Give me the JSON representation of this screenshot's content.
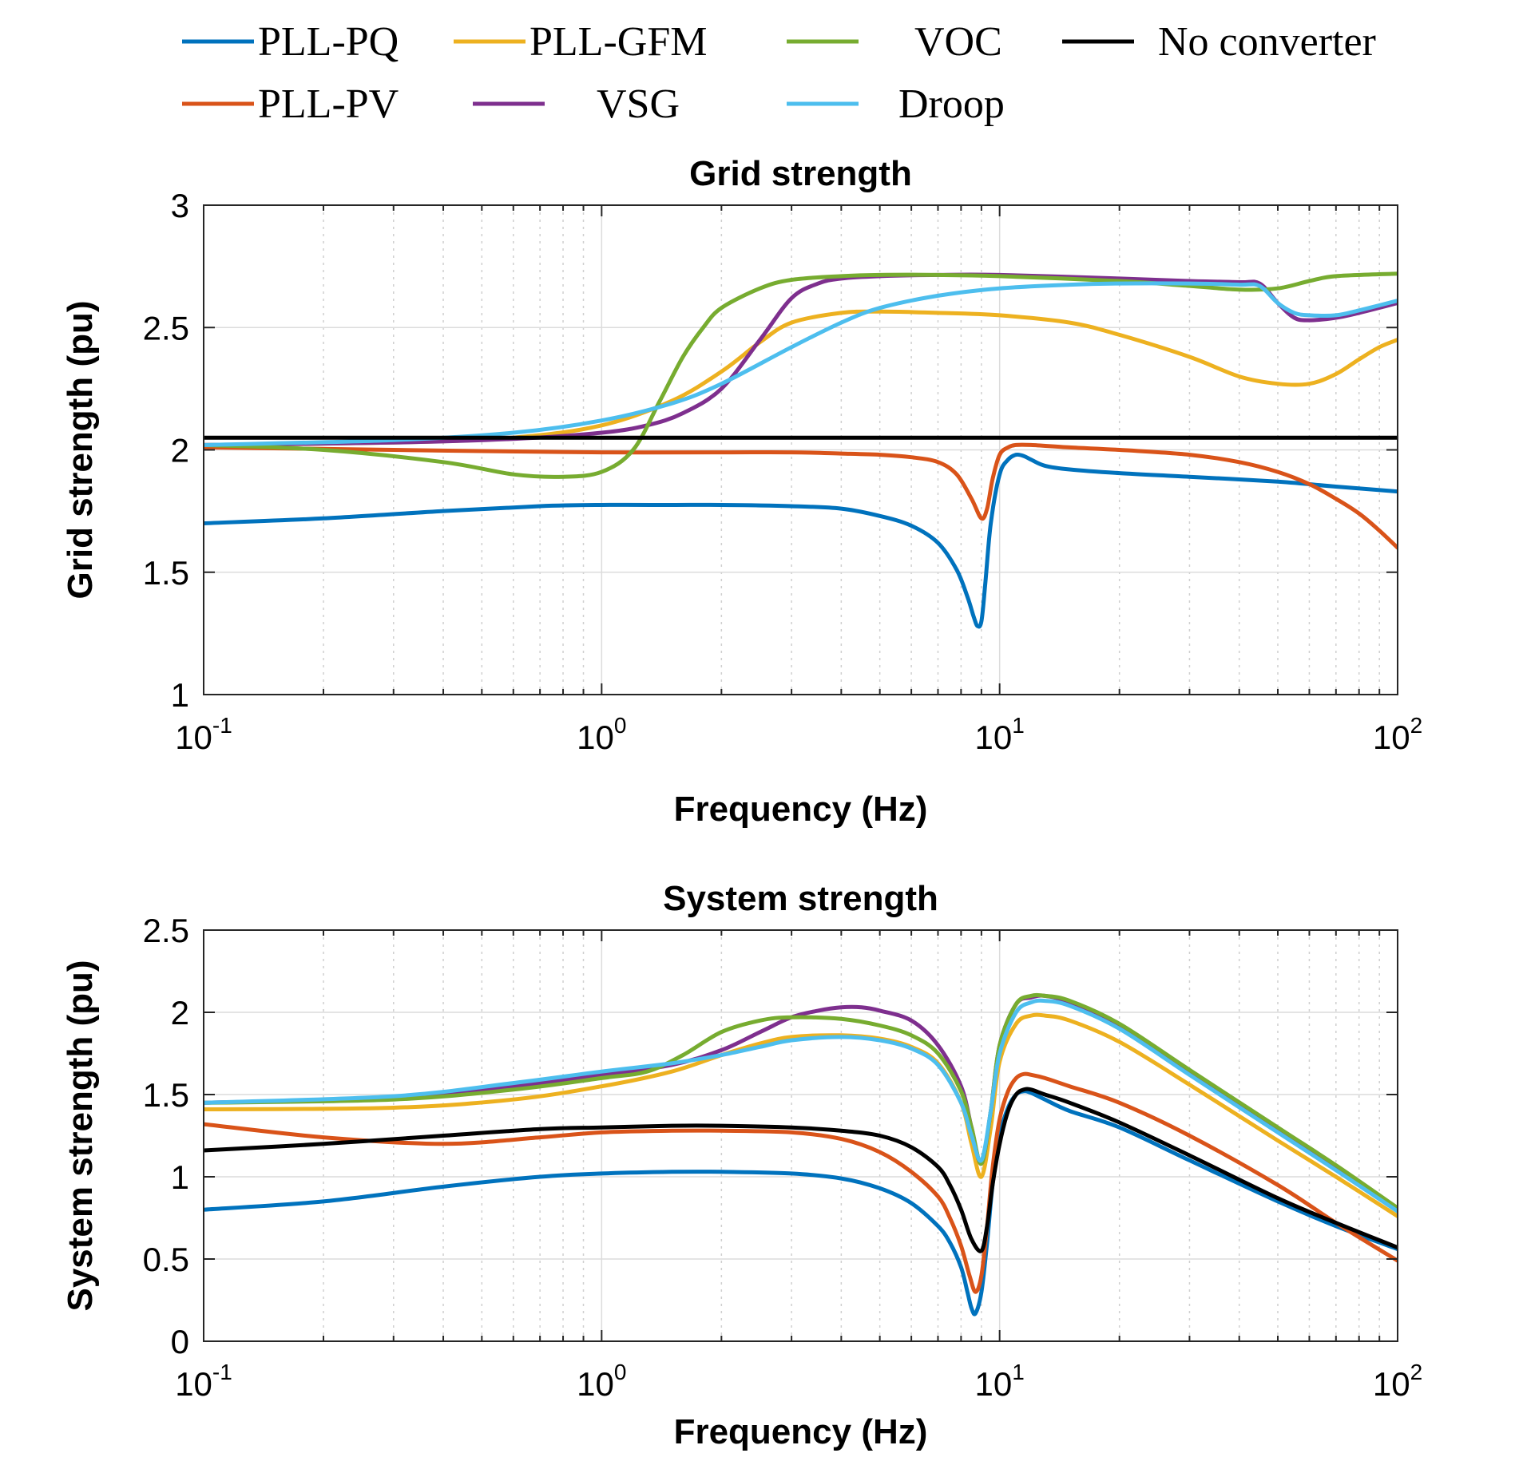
{
  "chart_data": [
    {
      "type": "line",
      "title": "Grid strength",
      "xlabel": "Frequency (Hz)",
      "ylabel": "Grid strength (pu)",
      "xscale": "log",
      "xlim": [
        0.1,
        100
      ],
      "ylim": [
        1,
        3
      ],
      "xticks": [
        {
          "base": "10",
          "exp": "-1"
        },
        {
          "base": "10",
          "exp": "0"
        },
        {
          "base": "10",
          "exp": "1"
        },
        {
          "base": "10",
          "exp": "2"
        }
      ],
      "yticks": [
        "1",
        "1.5",
        "2",
        "2.5",
        "3"
      ],
      "grid": true,
      "series": [
        {
          "name": "PLL-PQ",
          "color": "#0072BD",
          "x": [
            0.1,
            0.2,
            0.4,
            0.7,
            1,
            1.5,
            2,
            3,
            4,
            5,
            6,
            7,
            7.8,
            8.3,
            8.6,
            8.8,
            9,
            9.2,
            9.5,
            10,
            10.5,
            11,
            11.5,
            12,
            13,
            15,
            20,
            30,
            50,
            70,
            100
          ],
          "y": [
            1.7,
            1.72,
            1.75,
            1.77,
            1.775,
            1.775,
            1.775,
            1.77,
            1.76,
            1.73,
            1.69,
            1.62,
            1.51,
            1.4,
            1.32,
            1.28,
            1.3,
            1.45,
            1.7,
            1.9,
            1.96,
            1.98,
            1.975,
            1.96,
            1.935,
            1.92,
            1.905,
            1.89,
            1.87,
            1.85,
            1.83
          ]
        },
        {
          "name": "PLL-PV",
          "color": "#D95319",
          "x": [
            0.1,
            0.3,
            0.5,
            1,
            2,
            3,
            4,
            5,
            6,
            7,
            7.8,
            8.5,
            9,
            9.3,
            9.6,
            10,
            10.5,
            11,
            12,
            15,
            20,
            30,
            40,
            50,
            60,
            70,
            80,
            90,
            100
          ],
          "y": [
            2.01,
            2.0,
            1.995,
            1.99,
            1.99,
            1.99,
            1.985,
            1.98,
            1.97,
            1.95,
            1.9,
            1.8,
            1.72,
            1.76,
            1.88,
            1.98,
            2.01,
            2.02,
            2.02,
            2.01,
            2.0,
            1.98,
            1.95,
            1.91,
            1.86,
            1.8,
            1.74,
            1.67,
            1.6
          ]
        },
        {
          "name": "PLL-GFM",
          "color": "#EDB120",
          "x": [
            0.1,
            0.3,
            0.6,
            1,
            1.5,
            2,
            2.5,
            3,
            4,
            5,
            7,
            10,
            15,
            20,
            30,
            40,
            50,
            60,
            70,
            80,
            90,
            100
          ],
          "y": [
            2.02,
            2.03,
            2.05,
            2.1,
            2.2,
            2.32,
            2.44,
            2.52,
            2.56,
            2.565,
            2.56,
            2.55,
            2.52,
            2.47,
            2.38,
            2.3,
            2.27,
            2.27,
            2.31,
            2.37,
            2.42,
            2.45
          ]
        },
        {
          "name": "VSG",
          "color": "#7E2F8E",
          "x": [
            0.1,
            0.3,
            0.6,
            1,
            1.3,
            1.6,
            2,
            2.5,
            3,
            3.5,
            4,
            5,
            7,
            10,
            20,
            30,
            40,
            45,
            50,
            55,
            60,
            70,
            80,
            100
          ],
          "y": [
            2.02,
            2.03,
            2.045,
            2.07,
            2.1,
            2.15,
            2.25,
            2.45,
            2.62,
            2.68,
            2.7,
            2.71,
            2.715,
            2.715,
            2.7,
            2.69,
            2.685,
            2.68,
            2.6,
            2.54,
            2.53,
            2.54,
            2.56,
            2.6
          ]
        },
        {
          "name": "VOC",
          "color": "#77AC30",
          "x": [
            0.1,
            0.2,
            0.4,
            0.6,
            0.8,
            1,
            1.2,
            1.4,
            1.6,
            1.8,
            2,
            2.5,
            3,
            4,
            5,
            7,
            10,
            20,
            30,
            40,
            50,
            60,
            70,
            100
          ],
          "y": [
            2.02,
            2.0,
            1.95,
            1.9,
            1.89,
            1.91,
            2.0,
            2.2,
            2.38,
            2.5,
            2.58,
            2.66,
            2.695,
            2.71,
            2.715,
            2.715,
            2.71,
            2.69,
            2.67,
            2.655,
            2.66,
            2.69,
            2.71,
            2.72
          ]
        },
        {
          "name": "Droop",
          "color": "#4DBEEE",
          "x": [
            0.1,
            0.3,
            0.6,
            1,
            1.5,
            2,
            3,
            4,
            5,
            7,
            10,
            15,
            20,
            30,
            40,
            45,
            50,
            55,
            60,
            70,
            80,
            100
          ],
          "y": [
            2.02,
            2.04,
            2.07,
            2.12,
            2.19,
            2.27,
            2.42,
            2.52,
            2.58,
            2.63,
            2.66,
            2.675,
            2.68,
            2.68,
            2.675,
            2.67,
            2.6,
            2.56,
            2.55,
            2.55,
            2.57,
            2.61
          ]
        },
        {
          "name": "No converter",
          "color": "#000000",
          "x": [
            0.1,
            100
          ],
          "y": [
            2.05,
            2.05
          ]
        }
      ]
    },
    {
      "type": "line",
      "title": "System strength",
      "xlabel": "Frequency (Hz)",
      "ylabel": "System strength (pu)",
      "xscale": "log",
      "xlim": [
        0.1,
        100
      ],
      "ylim": [
        0,
        2.5
      ],
      "xticks": [
        {
          "base": "10",
          "exp": "-1"
        },
        {
          "base": "10",
          "exp": "0"
        },
        {
          "base": "10",
          "exp": "1"
        },
        {
          "base": "10",
          "exp": "2"
        }
      ],
      "yticks": [
        "0",
        "0.5",
        "1",
        "1.5",
        "2",
        "2.5"
      ],
      "grid": true,
      "series": [
        {
          "name": "PLL-PQ",
          "color": "#0072BD",
          "x": [
            0.1,
            0.2,
            0.4,
            0.7,
            1,
            1.5,
            2,
            3,
            4,
            5,
            6,
            7,
            7.5,
            8,
            8.3,
            8.5,
            8.7,
            9,
            9.3,
            9.6,
            10,
            10.5,
            11,
            11.5,
            12,
            13,
            15,
            20,
            30,
            50,
            70,
            100
          ],
          "y": [
            0.8,
            0.85,
            0.94,
            1.0,
            1.02,
            1.03,
            1.03,
            1.02,
            0.99,
            0.93,
            0.84,
            0.7,
            0.6,
            0.45,
            0.3,
            0.2,
            0.17,
            0.3,
            0.6,
            0.95,
            1.25,
            1.42,
            1.5,
            1.52,
            1.51,
            1.47,
            1.4,
            1.3,
            1.1,
            0.85,
            0.7,
            0.56
          ]
        },
        {
          "name": "PLL-PV",
          "color": "#D95319",
          "x": [
            0.1,
            0.2,
            0.4,
            0.7,
            1,
            1.5,
            2,
            3,
            4,
            5,
            6,
            7,
            7.5,
            8,
            8.4,
            8.7,
            9,
            9.3,
            9.6,
            10,
            10.5,
            11,
            11.5,
            12,
            13,
            15,
            20,
            30,
            50,
            70,
            100
          ],
          "y": [
            1.32,
            1.24,
            1.2,
            1.24,
            1.27,
            1.28,
            1.28,
            1.27,
            1.23,
            1.15,
            1.03,
            0.88,
            0.75,
            0.58,
            0.4,
            0.3,
            0.4,
            0.7,
            1.05,
            1.35,
            1.52,
            1.6,
            1.625,
            1.62,
            1.6,
            1.55,
            1.45,
            1.25,
            0.95,
            0.72,
            0.49
          ]
        },
        {
          "name": "PLL-GFM",
          "color": "#EDB120",
          "x": [
            0.1,
            0.3,
            0.6,
            1,
            1.5,
            2,
            2.5,
            3,
            4,
            5,
            6,
            7,
            8,
            8.5,
            9,
            9.5,
            10,
            11,
            12,
            13,
            15,
            20,
            30,
            50,
            70,
            100
          ],
          "y": [
            1.41,
            1.42,
            1.47,
            1.55,
            1.64,
            1.74,
            1.81,
            1.85,
            1.86,
            1.84,
            1.79,
            1.69,
            1.45,
            1.2,
            1.0,
            1.3,
            1.7,
            1.93,
            1.98,
            1.98,
            1.95,
            1.82,
            1.56,
            1.22,
            1.0,
            0.76
          ]
        },
        {
          "name": "VSG",
          "color": "#7E2F8E",
          "x": [
            0.1,
            0.3,
            0.6,
            1,
            1.5,
            2,
            2.5,
            3,
            3.5,
            4,
            4.5,
            5,
            6,
            7,
            8,
            8.5,
            9,
            9.5,
            10,
            11,
            12,
            13,
            15,
            20,
            30,
            50,
            70,
            100
          ],
          "y": [
            1.45,
            1.48,
            1.55,
            1.62,
            1.68,
            1.77,
            1.88,
            1.97,
            2.01,
            2.03,
            2.03,
            2.01,
            1.95,
            1.8,
            1.55,
            1.3,
            1.08,
            1.4,
            1.8,
            2.05,
            2.09,
            2.1,
            2.06,
            1.92,
            1.64,
            1.28,
            1.05,
            0.8
          ]
        },
        {
          "name": "VOC",
          "color": "#77AC30",
          "x": [
            0.1,
            0.3,
            0.6,
            1,
            1.3,
            1.6,
            2,
            2.5,
            3,
            4,
            5,
            6,
            7,
            8,
            8.5,
            9,
            9.5,
            10,
            11,
            12,
            13,
            15,
            20,
            30,
            50,
            70,
            100
          ],
          "y": [
            1.45,
            1.47,
            1.53,
            1.6,
            1.64,
            1.74,
            1.88,
            1.95,
            1.97,
            1.96,
            1.92,
            1.86,
            1.75,
            1.52,
            1.3,
            1.08,
            1.4,
            1.8,
            2.05,
            2.1,
            2.1,
            2.07,
            1.93,
            1.65,
            1.3,
            1.07,
            0.81
          ]
        },
        {
          "name": "Droop",
          "color": "#4DBEEE",
          "x": [
            0.1,
            0.3,
            0.6,
            1,
            1.5,
            2,
            2.5,
            3,
            4,
            5,
            6,
            7,
            8,
            8.5,
            9,
            9.5,
            10,
            11,
            12,
            13,
            15,
            20,
            30,
            50,
            70,
            100
          ],
          "y": [
            1.45,
            1.49,
            1.57,
            1.64,
            1.69,
            1.74,
            1.79,
            1.83,
            1.85,
            1.83,
            1.78,
            1.68,
            1.45,
            1.25,
            1.1,
            1.4,
            1.75,
            2.0,
            2.06,
            2.07,
            2.04,
            1.9,
            1.62,
            1.27,
            1.04,
            0.79
          ]
        },
        {
          "name": "No converter",
          "color": "#000000",
          "x": [
            0.1,
            0.2,
            0.4,
            0.7,
            1,
            1.5,
            2,
            3,
            4,
            5,
            6,
            7,
            7.5,
            8,
            8.5,
            9,
            9.3,
            9.6,
            10,
            10.5,
            11,
            11.5,
            12,
            13,
            15,
            20,
            30,
            50,
            70,
            100
          ],
          "y": [
            1.16,
            1.2,
            1.25,
            1.29,
            1.3,
            1.31,
            1.31,
            1.3,
            1.28,
            1.25,
            1.18,
            1.06,
            0.95,
            0.8,
            0.62,
            0.55,
            0.7,
            0.95,
            1.2,
            1.4,
            1.5,
            1.53,
            1.53,
            1.5,
            1.45,
            1.33,
            1.13,
            0.87,
            0.72,
            0.57
          ]
        }
      ]
    }
  ],
  "legend": {
    "placement": "top",
    "entries": [
      {
        "label": "PLL-PQ",
        "color": "#0072BD"
      },
      {
        "label": "PLL-GFM",
        "color": "#EDB120"
      },
      {
        "label": "VOC",
        "color": "#77AC30"
      },
      {
        "label": "No converter",
        "color": "#000000"
      },
      {
        "label": "PLL-PV",
        "color": "#D95319"
      },
      {
        "label": "VSG",
        "color": "#7E2F8E"
      },
      {
        "label": "Droop",
        "color": "#4DBEEE"
      }
    ]
  }
}
